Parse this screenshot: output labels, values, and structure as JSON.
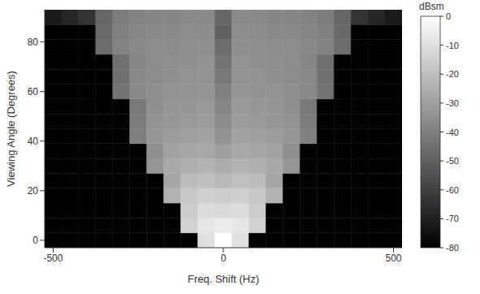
{
  "chart_data": {
    "type": "heatmap",
    "x_label": "Freq. Shift  (Hz)",
    "y_label": "Viewing Angle (Degrees)",
    "x": [
      -500,
      -450,
      -400,
      -350,
      -300,
      -250,
      -200,
      -150,
      -100,
      -50,
      0,
      50,
      100,
      150,
      200,
      250,
      300,
      350,
      400,
      450,
      500
    ],
    "y": [
      0,
      6,
      12,
      18,
      24,
      30,
      36,
      42,
      48,
      54,
      60,
      66,
      72,
      78,
      84,
      90
    ],
    "values": [
      [
        -80,
        -80,
        -80,
        -80,
        -80,
        -80,
        -80,
        -80,
        -80,
        -10,
        0,
        -10,
        -80,
        -80,
        -80,
        -80,
        -80,
        -80,
        -80,
        -80,
        -80
      ],
      [
        -80,
        -80,
        -80,
        -80,
        -80,
        -80,
        -80,
        -80,
        -14,
        -8,
        -6,
        -8,
        -14,
        -80,
        -80,
        -80,
        -80,
        -80,
        -80,
        -80,
        -80
      ],
      [
        -80,
        -80,
        -80,
        -80,
        -80,
        -80,
        -80,
        -80,
        -16,
        -11,
        -12,
        -11,
        -16,
        -80,
        -80,
        -80,
        -80,
        -80,
        -80,
        -80,
        -80
      ],
      [
        -80,
        -80,
        -80,
        -80,
        -80,
        -80,
        -80,
        -24,
        -17,
        -15,
        -16,
        -15,
        -17,
        -24,
        -80,
        -80,
        -80,
        -80,
        -80,
        -80,
        -80
      ],
      [
        -80,
        -80,
        -80,
        -80,
        -80,
        -80,
        -80,
        -28,
        -21,
        -20,
        -22,
        -20,
        -21,
        -28,
        -80,
        -80,
        -80,
        -80,
        -80,
        -80,
        -80
      ],
      [
        -80,
        -80,
        -80,
        -80,
        -80,
        -80,
        -33,
        -27,
        -25,
        -24,
        -26,
        -24,
        -25,
        -27,
        -33,
        -80,
        -80,
        -80,
        -80,
        -80,
        -80
      ],
      [
        -80,
        -80,
        -80,
        -80,
        -80,
        -80,
        -35,
        -29,
        -28,
        -27,
        -30,
        -27,
        -28,
        -29,
        -35,
        -80,
        -80,
        -80,
        -80,
        -80,
        -80
      ],
      [
        -80,
        -80,
        -80,
        -80,
        -80,
        -40,
        -33,
        -31,
        -30,
        -29,
        -34,
        -29,
        -30,
        -31,
        -33,
        -40,
        -80,
        -80,
        -80,
        -80,
        -80
      ],
      [
        -80,
        -80,
        -80,
        -80,
        -80,
        -41,
        -34,
        -33,
        -32,
        -31,
        -36,
        -31,
        -32,
        -33,
        -34,
        -41,
        -80,
        -80,
        -80,
        -80,
        -80
      ],
      [
        -80,
        -80,
        -80,
        -80,
        -80,
        -42,
        -35,
        -33,
        -33,
        -32,
        -38,
        -32,
        -33,
        -33,
        -35,
        -42,
        -80,
        -80,
        -80,
        -80,
        -80
      ],
      [
        -80,
        -80,
        -80,
        -80,
        -44,
        -37,
        -35,
        -34,
        -34,
        -33,
        -40,
        -33,
        -34,
        -34,
        -35,
        -37,
        -44,
        -80,
        -80,
        -80,
        -80
      ],
      [
        -80,
        -80,
        -80,
        -80,
        -45,
        -37,
        -36,
        -35,
        -34,
        -34,
        -42,
        -34,
        -34,
        -35,
        -36,
        -37,
        -45,
        -80,
        -80,
        -80,
        -80
      ],
      [
        -80,
        -80,
        -80,
        -80,
        -45,
        -38,
        -36,
        -35,
        -35,
        -34,
        -44,
        -34,
        -35,
        -35,
        -36,
        -38,
        -45,
        -80,
        -80,
        -80,
        -80
      ],
      [
        -80,
        -80,
        -80,
        -46,
        -39,
        -37,
        -36,
        -36,
        -35,
        -35,
        -46,
        -35,
        -35,
        -36,
        -36,
        -37,
        -39,
        -46,
        -80,
        -80,
        -80
      ],
      [
        -80,
        -80,
        -80,
        -47,
        -40,
        -38,
        -37,
        -37,
        -36,
        -36,
        -50,
        -36,
        -36,
        -37,
        -37,
        -38,
        -40,
        -47,
        -80,
        -80,
        -80
      ],
      [
        -72,
        -68,
        -64,
        -48,
        -41,
        -39,
        -38,
        -38,
        -37,
        -37,
        -48,
        -37,
        -37,
        -38,
        -38,
        -39,
        -41,
        -48,
        -64,
        -68,
        -72
      ]
    ],
    "xlim": [
      -525,
      525
    ],
    "xticks": [
      -500,
      0,
      500
    ],
    "ylim": [
      -3,
      93
    ],
    "yticks": [
      0,
      20,
      40,
      60,
      80
    ],
    "colorbar": {
      "label": "dBsm",
      "range": [
        -80,
        0
      ],
      "ticks": [
        0,
        -10,
        -20,
        -30,
        -40,
        -50,
        -60,
        -70,
        -80
      ]
    }
  }
}
